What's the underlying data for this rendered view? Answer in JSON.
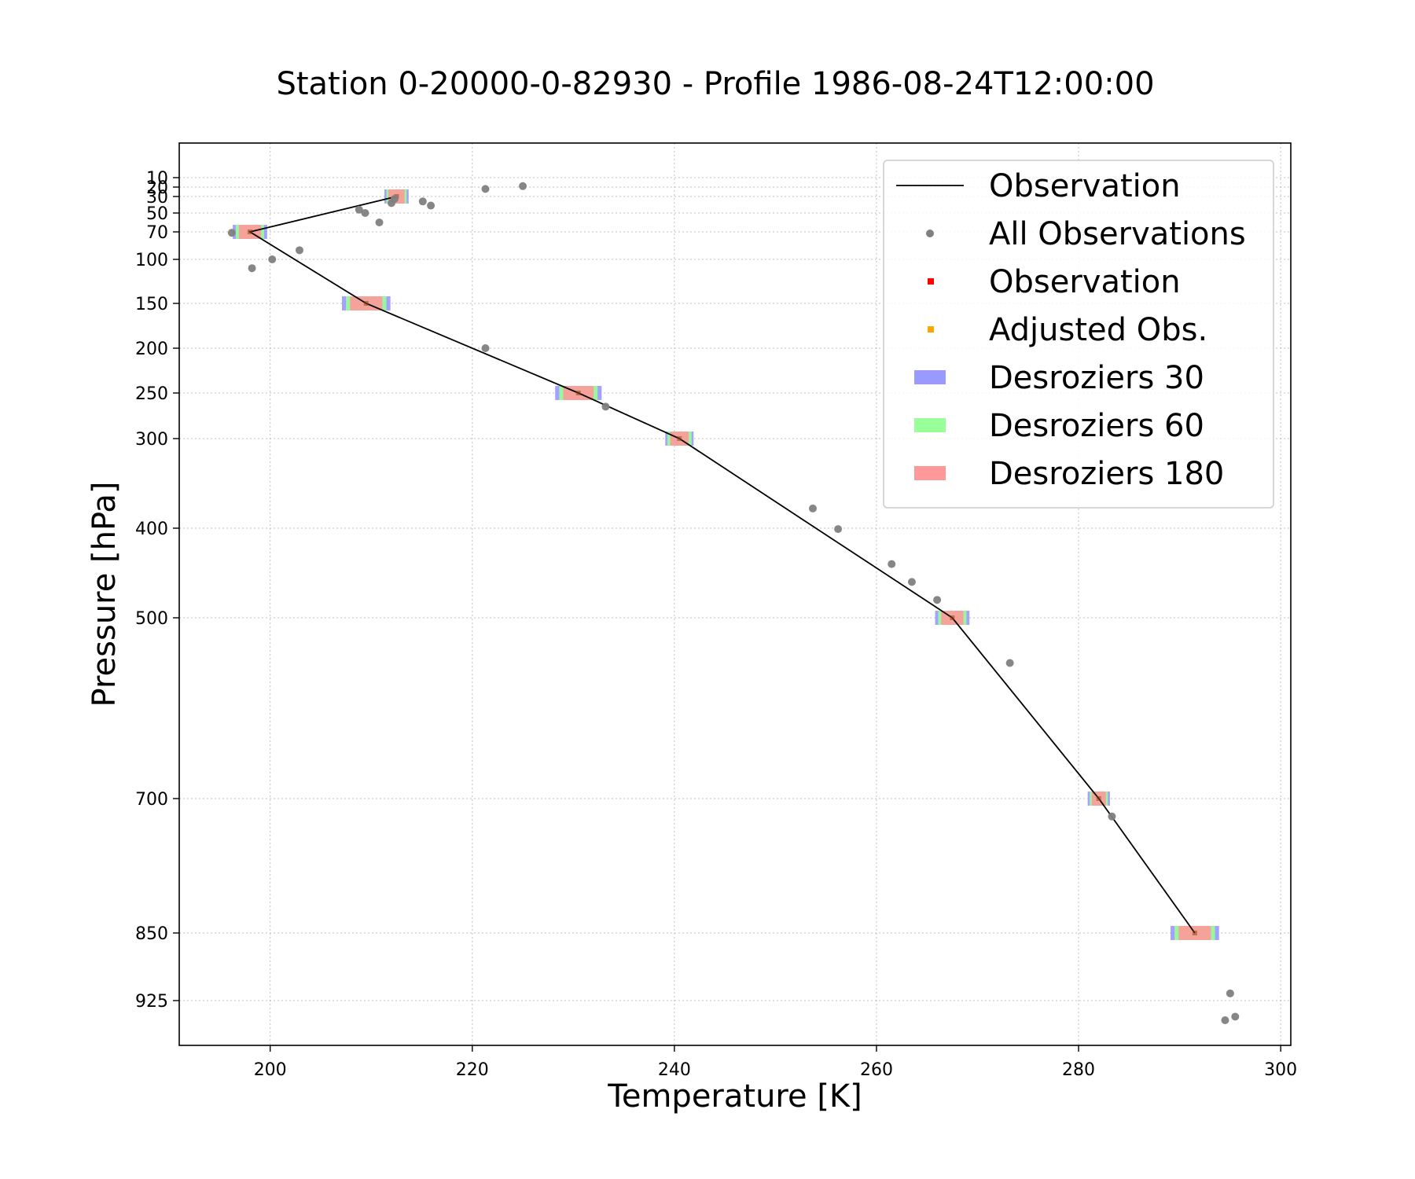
{
  "chart_data": {
    "type": "scatter",
    "title": "Station 0-20000-0-82930 - Profile 1986-08-24T12:00:00",
    "xlabel": "Temperature [K]",
    "ylabel": "Pressure [hPa]",
    "xlim": [
      191,
      301
    ],
    "ylim": [
      1000,
      5
    ],
    "yscale": "pressure (inverted, nonlinear)",
    "grid": true,
    "legend_position": "top-right",
    "xticks": [
      200,
      220,
      240,
      260,
      280,
      300
    ],
    "yticks": [
      10,
      20,
      30,
      50,
      70,
      100,
      150,
      200,
      250,
      300,
      400,
      500,
      700,
      850,
      925
    ],
    "ytick_labels": [
      "10",
      "20",
      "30",
      "50",
      "70",
      "100",
      "150",
      "200",
      "250",
      "300",
      "400",
      "500",
      "700",
      "850",
      "925"
    ],
    "legend": [
      {
        "label": "Observation",
        "kind": "line",
        "color": "#000000"
      },
      {
        "label": "All Observations",
        "kind": "dot",
        "color": "#808080"
      },
      {
        "label": "Observation",
        "kind": "square",
        "color": "#ff0000"
      },
      {
        "label": "Adjusted Obs.",
        "kind": "square",
        "color": "#ffa500"
      },
      {
        "label": "Desroziers 30",
        "kind": "band",
        "color": "#9999ff"
      },
      {
        "label": "Desroziers 60",
        "kind": "band",
        "color": "#99ff99"
      },
      {
        "label": "Desroziers 180",
        "kind": "band",
        "color": "#ff9999"
      }
    ],
    "series": [
      {
        "name": "Observation",
        "kind": "line",
        "color": "#000000",
        "points": [
          [
            291.5,
            850
          ],
          [
            282,
            700
          ],
          [
            267.5,
            500
          ],
          [
            240.5,
            300
          ],
          [
            230.5,
            250
          ],
          [
            209.5,
            150
          ],
          [
            198,
            70
          ],
          [
            212.5,
            30
          ]
        ]
      },
      {
        "name": "All Observations",
        "kind": "scatter",
        "color": "#808080",
        "points": [
          [
            294.5,
            947
          ],
          [
            295.5,
            943
          ],
          [
            295,
            917
          ],
          [
            283.3,
            720
          ],
          [
            273.2,
            550
          ],
          [
            266,
            480
          ],
          [
            263.5,
            460
          ],
          [
            261.5,
            440
          ],
          [
            256.2,
            401
          ],
          [
            253.7,
            378
          ],
          [
            233.2,
            265
          ],
          [
            221.3,
            200
          ],
          [
            200.2,
            100
          ],
          [
            198.2,
            110
          ],
          [
            202.9,
            90
          ],
          [
            196.2,
            71
          ],
          [
            210.8,
            60
          ],
          [
            209.4,
            50
          ],
          [
            208.8,
            46
          ],
          [
            212,
            38
          ],
          [
            215.1,
            36
          ],
          [
            215.9,
            41
          ],
          [
            212.3,
            33
          ],
          [
            221.3,
            22
          ],
          [
            225,
            19
          ]
        ]
      },
      {
        "name": "Desroziers 30",
        "kind": "band",
        "color": "#9999ff",
        "points": [
          [
            291.5,
            850,
            2.4
          ],
          [
            282,
            700,
            1.1
          ],
          [
            267.5,
            500,
            1.7
          ],
          [
            240.5,
            300,
            1.4
          ],
          [
            230.5,
            250,
            2.3
          ],
          [
            209.5,
            150,
            2.4
          ],
          [
            198,
            70,
            1.7
          ],
          [
            212.5,
            30,
            1.2
          ]
        ]
      },
      {
        "name": "Desroziers 60",
        "kind": "band",
        "color": "#99ff99",
        "points": [
          [
            291.5,
            850,
            2.0
          ],
          [
            282,
            700,
            0.9
          ],
          [
            267.5,
            500,
            1.4
          ],
          [
            240.5,
            300,
            1.2
          ],
          [
            230.5,
            250,
            1.9
          ],
          [
            209.5,
            150,
            2.0
          ],
          [
            198,
            70,
            1.4
          ],
          [
            212.5,
            30,
            1.0
          ]
        ]
      },
      {
        "name": "Desroziers 180",
        "kind": "band",
        "color": "#ff9999",
        "points": [
          [
            291.5,
            850,
            1.6
          ],
          [
            282,
            700,
            0.7
          ],
          [
            267.5,
            500,
            1.1
          ],
          [
            240.5,
            300,
            0.9
          ],
          [
            230.5,
            250,
            1.5
          ],
          [
            209.5,
            150,
            1.6
          ],
          [
            198,
            70,
            1.1
          ],
          [
            212.5,
            30,
            0.8
          ]
        ]
      }
    ]
  }
}
